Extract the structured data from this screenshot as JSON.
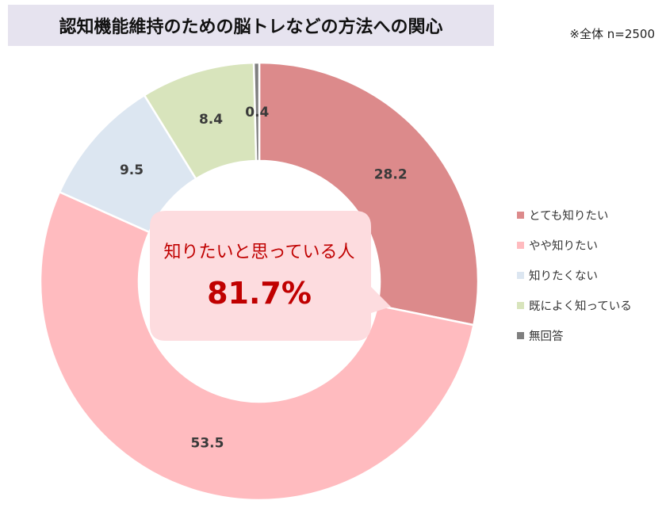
{
  "header": {
    "title": "認知機能維持のための脳トレなどの方法への関心",
    "note": "※全体 n=2500"
  },
  "callout": {
    "label": "知りたいと思っている人",
    "value": "81.7%",
    "colors": {
      "fill": "#fddcdf",
      "text": "#c00000"
    }
  },
  "chart_data": {
    "type": "pie",
    "donut": true,
    "start_angle_deg": 0,
    "direction": "clockwise",
    "categories": [
      "とても知りたい",
      "やや知りたい",
      "知りたくない",
      "既によく知っている",
      "無回答"
    ],
    "values": [
      28.2,
      53.5,
      9.5,
      8.4,
      0.4
    ],
    "data_labels": [
      "28.2",
      "53.5",
      "9.5",
      "8.4",
      "0.4"
    ],
    "colors": [
      "#dc8a8b",
      "#ffbbbf",
      "#dce6f1",
      "#d8e4bc",
      "#7f7f7f"
    ],
    "legend_position": "right"
  }
}
